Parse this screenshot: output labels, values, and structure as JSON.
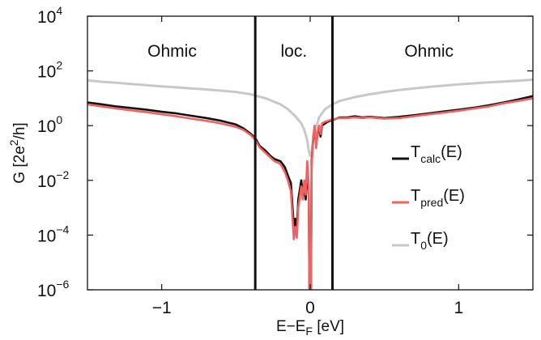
{
  "chart_data": {
    "type": "line",
    "xlabel": {
      "main": "E−E",
      "sub": "F",
      "rest": " [eV]"
    },
    "ylabel": {
      "main": "G [2e",
      "sup": "2",
      "rest": "/h]"
    },
    "xlim": [
      -1.5,
      1.5
    ],
    "ylim_log10": [
      -6,
      4
    ],
    "y_scale": "log",
    "grid": false,
    "x_ticks": [
      {
        "value": -1,
        "label": "−1"
      },
      {
        "value": 0,
        "label": "0"
      },
      {
        "value": 1,
        "label": "1"
      }
    ],
    "y_ticks": [
      {
        "exp": -6,
        "base": "10",
        "sup": "−6"
      },
      {
        "exp": -4,
        "base": "10",
        "sup": "−4"
      },
      {
        "exp": -2,
        "base": "10",
        "sup": "−2"
      },
      {
        "exp": 0,
        "base": "10",
        "sup": "0"
      },
      {
        "exp": 2,
        "base": "10",
        "sup": "2"
      },
      {
        "exp": 4,
        "base": "10",
        "sup": "4"
      }
    ],
    "vlines": [
      -0.37,
      0.15
    ],
    "regions": [
      {
        "label": "Ohmic",
        "x": -0.93
      },
      {
        "label": "loc.",
        "x": -0.11
      },
      {
        "label": "Ohmic",
        "x": 0.8
      }
    ],
    "legend_position": "right",
    "colors": {
      "calc": "#111111",
      "pred": "#f06262",
      "zero": "#c8c8c8"
    },
    "series": [
      {
        "key": "zero",
        "legend": {
          "main": "T",
          "sub": "0",
          "rest": "(E)"
        },
        "x": [
          -1.5,
          -1.4,
          -1.3,
          -1.2,
          -1.1,
          -1.0,
          -0.9,
          -0.8,
          -0.7,
          -0.6,
          -0.5,
          -0.4,
          -0.3,
          -0.2,
          -0.15,
          -0.1,
          -0.06,
          -0.04,
          -0.02,
          -0.01,
          0.0,
          0.01,
          0.02,
          0.04,
          0.06,
          0.1,
          0.15,
          0.2,
          0.3,
          0.4,
          0.5,
          0.6,
          0.7,
          0.8,
          0.9,
          1.0,
          1.1,
          1.2,
          1.3,
          1.4,
          1.5
        ],
        "y": [
          45,
          40,
          37,
          33,
          30,
          27,
          25,
          23,
          21,
          19,
          17,
          14,
          10,
          6,
          4,
          2.2,
          1.2,
          0.7,
          0.3,
          0.12,
          0.08,
          0.12,
          0.3,
          0.8,
          2,
          4,
          6,
          8,
          11,
          14,
          17,
          20,
          23,
          26,
          29,
          32,
          35,
          38,
          41,
          44,
          48
        ]
      },
      {
        "key": "calc",
        "legend": {
          "main": "T",
          "sub": "calc",
          "rest": "(E)"
        },
        "x": [
          -1.5,
          -1.4,
          -1.3,
          -1.2,
          -1.1,
          -1.0,
          -0.9,
          -0.8,
          -0.7,
          -0.6,
          -0.5,
          -0.45,
          -0.4,
          -0.37,
          -0.34,
          -0.3,
          -0.27,
          -0.24,
          -0.2,
          -0.17,
          -0.15,
          -0.13,
          -0.11,
          -0.1,
          -0.09,
          -0.08,
          -0.06,
          -0.05,
          -0.04,
          -0.03,
          -0.02,
          -0.01,
          -0.005,
          0.0,
          0.005,
          0.01,
          0.02,
          0.03,
          0.04,
          0.05,
          0.06,
          0.07,
          0.08,
          0.1,
          0.12,
          0.15,
          0.2,
          0.25,
          0.3,
          0.35,
          0.4,
          0.5,
          0.6,
          0.7,
          0.8,
          0.9,
          1.0,
          1.1,
          1.2,
          1.3,
          1.4,
          1.5
        ],
        "y": [
          7,
          6,
          5,
          4.4,
          3.8,
          3.2,
          2.8,
          2.3,
          1.9,
          1.5,
          1.1,
          0.8,
          0.5,
          0.35,
          0.18,
          0.12,
          0.08,
          0.06,
          0.05,
          0.03,
          0.015,
          0.008,
          0.0002,
          0.0004,
          0.00015,
          0.002,
          0.01,
          0.003,
          0.005,
          0.002,
          0.02,
          0.004,
          5e-07,
          1e-06,
          5e-07,
          0.05,
          0.3,
          0.8,
          0.2,
          0.5,
          0.9,
          0.4,
          1.0,
          1.2,
          1.4,
          1.6,
          2.0,
          2.0,
          2.2,
          2.0,
          2.1,
          1.9,
          2.1,
          2.4,
          2.8,
          3.3,
          3.8,
          4.5,
          5.5,
          7,
          9,
          12
        ]
      },
      {
        "key": "pred",
        "legend": {
          "main": "T",
          "sub": "pred",
          "rest": "(E)"
        },
        "x": [
          -1.5,
          -1.4,
          -1.3,
          -1.2,
          -1.1,
          -1.0,
          -0.9,
          -0.8,
          -0.7,
          -0.6,
          -0.5,
          -0.45,
          -0.4,
          -0.37,
          -0.34,
          -0.3,
          -0.27,
          -0.24,
          -0.2,
          -0.17,
          -0.15,
          -0.13,
          -0.11,
          -0.1,
          -0.09,
          -0.08,
          -0.06,
          -0.05,
          -0.04,
          -0.03,
          -0.02,
          -0.01,
          -0.005,
          0.0,
          0.005,
          0.01,
          0.02,
          0.03,
          0.04,
          0.05,
          0.06,
          0.07,
          0.08,
          0.1,
          0.12,
          0.15,
          0.2,
          0.25,
          0.3,
          0.35,
          0.4,
          0.5,
          0.6,
          0.7,
          0.8,
          0.9,
          1.0,
          1.1,
          1.2,
          1.3,
          1.4,
          1.5
        ],
        "y": [
          6,
          5,
          4.2,
          3.6,
          3.1,
          2.6,
          2.2,
          1.8,
          1.5,
          1.2,
          0.9,
          0.7,
          0.45,
          0.3,
          0.16,
          0.1,
          0.07,
          0.05,
          0.04,
          0.02,
          0.01,
          0.004,
          7e-05,
          0.0002,
          8e-05,
          0.001,
          0.006,
          0.002,
          0.01,
          0.003,
          0.05,
          0.006,
          5e-07,
          1e-06,
          5e-07,
          0.03,
          0.4,
          1.0,
          0.15,
          0.6,
          1.0,
          0.5,
          1.2,
          1.4,
          1.5,
          1.7,
          1.9,
          1.9,
          2.0,
          1.9,
          2.0,
          1.8,
          1.9,
          2.2,
          2.6,
          3.0,
          3.5,
          4.2,
          5.0,
          6.5,
          8,
          10
        ]
      }
    ]
  }
}
